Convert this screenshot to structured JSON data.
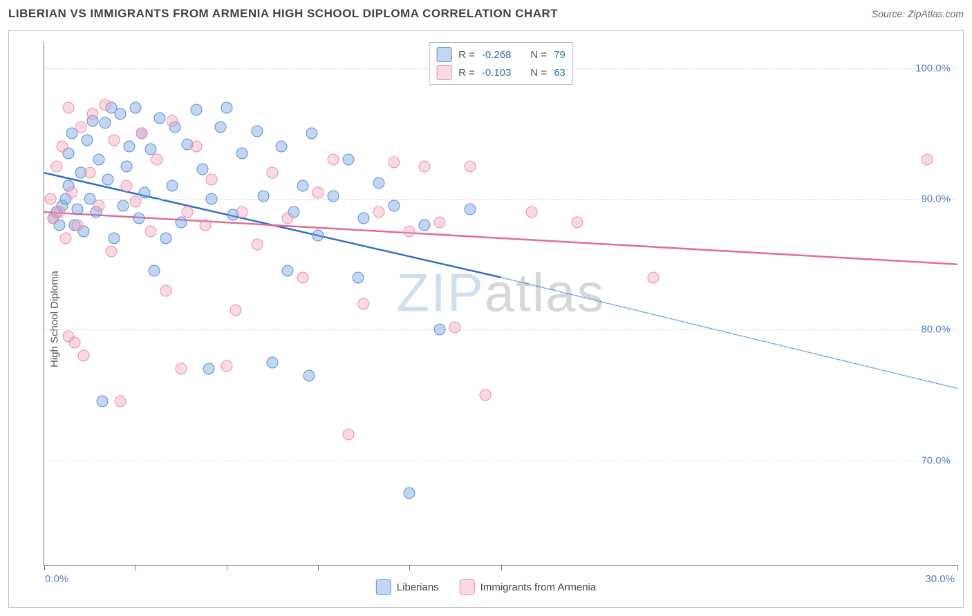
{
  "header": {
    "title": "LIBERIAN VS IMMIGRANTS FROM ARMENIA HIGH SCHOOL DIPLOMA CORRELATION CHART",
    "source_prefix": "Source: ",
    "source_name": "ZipAtlas.com"
  },
  "axes": {
    "y_label": "High School Diploma",
    "x_min": 0,
    "x_max": 30,
    "y_min": 62,
    "y_max": 102,
    "y_ticks": [
      70,
      80,
      90,
      100
    ],
    "y_tick_labels": [
      "70.0%",
      "80.0%",
      "90.0%",
      "100.0%"
    ],
    "x_ticks": [
      0,
      3,
      6,
      9,
      12,
      15,
      30
    ],
    "x_left_label": "0.0%",
    "x_right_label": "30.0%"
  },
  "colors": {
    "blue_fill": "rgba(120,165,225,0.45)",
    "blue_stroke": "#5a8fd6",
    "pink_fill": "rgba(245,160,185,0.40)",
    "pink_stroke": "#e890ac",
    "blue_line": "#2f6fc7",
    "pink_line": "#e46b93",
    "tick_text": "#5a7fbf",
    "grid": "#d7d7d7"
  },
  "watermark": {
    "part1": "ZIP",
    "part2": "atlas"
  },
  "series": [
    {
      "key": "liberians",
      "label": "Liberians",
      "color_fill": "rgba(120,165,225,0.45)",
      "color_stroke": "#5a8fd6",
      "R": "-0.268",
      "N": "79",
      "trend": {
        "x1": 0,
        "y1": 92,
        "x2": 15,
        "y2": 84,
        "dash_x2": 30,
        "dash_y2": 75.5
      },
      "points": [
        [
          0.3,
          88.5
        ],
        [
          0.4,
          89
        ],
        [
          0.5,
          88
        ],
        [
          0.6,
          89.5
        ],
        [
          0.7,
          90
        ],
        [
          0.8,
          91
        ],
        [
          0.8,
          93.5
        ],
        [
          0.9,
          95
        ],
        [
          1.0,
          88
        ],
        [
          1.1,
          89.2
        ],
        [
          1.2,
          92
        ],
        [
          1.3,
          87.5
        ],
        [
          1.4,
          94.5
        ],
        [
          1.5,
          90
        ],
        [
          1.6,
          96
        ],
        [
          1.7,
          89
        ],
        [
          1.8,
          93
        ],
        [
          1.9,
          74.5
        ],
        [
          2.0,
          95.8
        ],
        [
          2.1,
          91.5
        ],
        [
          2.2,
          97
        ],
        [
          2.3,
          87
        ],
        [
          2.5,
          96.5
        ],
        [
          2.6,
          89.5
        ],
        [
          2.7,
          92.5
        ],
        [
          2.8,
          94
        ],
        [
          3.0,
          97
        ],
        [
          3.1,
          88.5
        ],
        [
          3.2,
          95
        ],
        [
          3.3,
          90.5
        ],
        [
          3.5,
          93.8
        ],
        [
          3.6,
          84.5
        ],
        [
          3.8,
          96.2
        ],
        [
          4.0,
          87
        ],
        [
          4.2,
          91
        ],
        [
          4.3,
          95.5
        ],
        [
          4.5,
          88.2
        ],
        [
          4.7,
          94.2
        ],
        [
          5.0,
          96.8
        ],
        [
          5.2,
          92.3
        ],
        [
          5.4,
          77
        ],
        [
          5.5,
          90
        ],
        [
          5.8,
          95.5
        ],
        [
          6.0,
          97
        ],
        [
          6.2,
          88.8
        ],
        [
          6.5,
          93.5
        ],
        [
          7.0,
          95.2
        ],
        [
          7.2,
          90.2
        ],
        [
          7.5,
          77.5
        ],
        [
          7.8,
          94
        ],
        [
          8.0,
          84.5
        ],
        [
          8.2,
          89
        ],
        [
          8.5,
          91
        ],
        [
          8.7,
          76.5
        ],
        [
          8.8,
          95
        ],
        [
          9.0,
          87.2
        ],
        [
          9.5,
          90.2
        ],
        [
          10.0,
          93
        ],
        [
          10.3,
          84
        ],
        [
          10.5,
          88.5
        ],
        [
          11.0,
          91.2
        ],
        [
          11.5,
          89.5
        ],
        [
          12.0,
          67.5
        ],
        [
          12.5,
          88
        ],
        [
          13.0,
          80
        ],
        [
          14.0,
          89.2
        ]
      ]
    },
    {
      "key": "armenia",
      "label": "Immigrants from Armenia",
      "color_fill": "rgba(245,160,185,0.40)",
      "color_stroke": "#e890ac",
      "R": "-0.103",
      "N": "63",
      "trend": {
        "x1": 0,
        "y1": 89,
        "x2": 30,
        "y2": 85
      },
      "points": [
        [
          0.2,
          90
        ],
        [
          0.3,
          88.5
        ],
        [
          0.4,
          92.5
        ],
        [
          0.5,
          89
        ],
        [
          0.6,
          94
        ],
        [
          0.7,
          87
        ],
        [
          0.8,
          79.5
        ],
        [
          0.8,
          97
        ],
        [
          0.9,
          90.5
        ],
        [
          1.0,
          79
        ],
        [
          1.1,
          88
        ],
        [
          1.2,
          95.5
        ],
        [
          1.3,
          78
        ],
        [
          1.5,
          92
        ],
        [
          1.6,
          96.5
        ],
        [
          1.8,
          89.5
        ],
        [
          2.0,
          97.2
        ],
        [
          2.2,
          86
        ],
        [
          2.3,
          94.5
        ],
        [
          2.5,
          74.5
        ],
        [
          2.7,
          91
        ],
        [
          3.0,
          89.8
        ],
        [
          3.2,
          95
        ],
        [
          3.5,
          87.5
        ],
        [
          3.7,
          93
        ],
        [
          4.0,
          83
        ],
        [
          4.2,
          96
        ],
        [
          4.5,
          77
        ],
        [
          4.7,
          89
        ],
        [
          5.0,
          94
        ],
        [
          5.3,
          88
        ],
        [
          5.5,
          91.5
        ],
        [
          6.0,
          77.2
        ],
        [
          6.3,
          81.5
        ],
        [
          6.5,
          89
        ],
        [
          7.0,
          86.5
        ],
        [
          7.5,
          92
        ],
        [
          8.0,
          88.5
        ],
        [
          8.5,
          84
        ],
        [
          9.0,
          90.5
        ],
        [
          9.5,
          93
        ],
        [
          10.0,
          72
        ],
        [
          10.5,
          82
        ],
        [
          11.0,
          89
        ],
        [
          11.5,
          92.8
        ],
        [
          12.0,
          87.5
        ],
        [
          12.5,
          92.5
        ],
        [
          13.0,
          88.2
        ],
        [
          13.5,
          80.2
        ],
        [
          14.0,
          92.5
        ],
        [
          14.5,
          75
        ],
        [
          16.0,
          89
        ],
        [
          17.5,
          88.2
        ],
        [
          20.0,
          84
        ],
        [
          29.0,
          93
        ]
      ]
    }
  ],
  "stats_legend": {
    "R_label": "R =",
    "N_label": "N ="
  }
}
